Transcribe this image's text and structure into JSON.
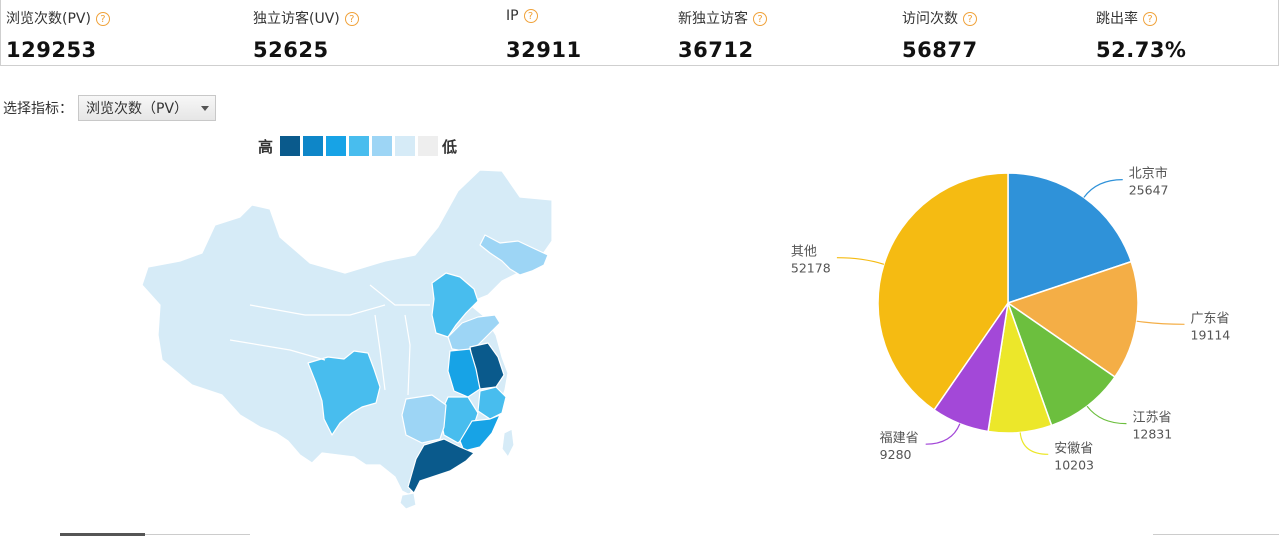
{
  "stats": [
    {
      "label": "浏览次数(PV)",
      "value": "129253"
    },
    {
      "label": "独立访客(UV)",
      "value": "52625"
    },
    {
      "label": "IP",
      "value": "32911"
    },
    {
      "label": "新独立访客",
      "value": "36712"
    },
    {
      "label": "访问次数",
      "value": "56877"
    },
    {
      "label": "跳出率",
      "value": "52.73%"
    }
  ],
  "help_glyph": "?",
  "selector": {
    "label": "选择指标：",
    "value": "浏览次数（PV）"
  },
  "legend": {
    "high": "高",
    "low": "低",
    "colors": [
      "#0a5a8c",
      "#0e86c8",
      "#17a3e6",
      "#48bdee",
      "#9dd5f5",
      "#d6ebf7",
      "#eeeeee"
    ]
  },
  "map_colors": {
    "base": "#d6ebf7",
    "beijing": "#0a5a8c",
    "hebei": "#48bdee",
    "shandong": "#9dd5f5",
    "jiangsu": "#0a5a8c",
    "anhui": "#17a3e6",
    "zhejiang": "#48bdee",
    "fujian": "#17a3e6",
    "guangdong": "#0a5a8c",
    "jiangxi": "#48bdee",
    "hunan": "#9dd5f5",
    "sichuan": "#48bdee",
    "heilongjiang": "#9dd5f5"
  },
  "chart_data": {
    "type": "pie",
    "series": [
      {
        "name": "北京市",
        "value": 25647,
        "color": "#2f92d9"
      },
      {
        "name": "广东省",
        "value": 19114,
        "color": "#f4ae46"
      },
      {
        "name": "江苏省",
        "value": 12831,
        "color": "#6cbf3e"
      },
      {
        "name": "安徽省",
        "value": 10203,
        "color": "#ece72a"
      },
      {
        "name": "福建省",
        "value": 9280,
        "color": "#a348d8"
      },
      {
        "name": "其他",
        "value": 52178,
        "color": "#f5bb12"
      }
    ]
  }
}
